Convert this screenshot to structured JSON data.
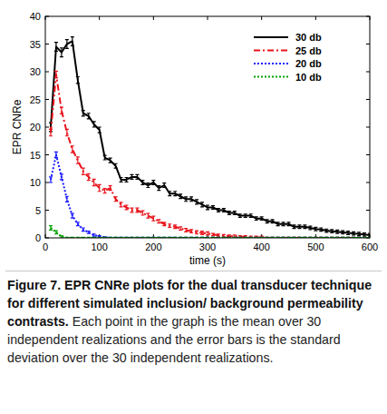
{
  "chart_data": {
    "type": "line",
    "x_label": "time (s)",
    "y_label": "EPR CNRe",
    "annotations": [
      "Figure 7. EPR CNRe plots for the dual transducer technique for different simulated inclusion/ background permeability contrasts.",
      "Each point in the graph is the mean over 30 independent realizations and the error bars is the standard deviation over the 30 independent realizations."
    ],
    "xlim": [
      0,
      600
    ],
    "ylim": [
      0,
      40
    ],
    "xticks": [
      0,
      100,
      200,
      300,
      400,
      500,
      600
    ],
    "yticks": [
      0,
      5,
      10,
      15,
      20,
      25,
      30,
      35,
      40
    ],
    "grid": false,
    "legend": "upper-right",
    "x": [
      10,
      20,
      30,
      40,
      50,
      60,
      70,
      80,
      90,
      100,
      110,
      120,
      130,
      140,
      150,
      160,
      170,
      180,
      190,
      200,
      210,
      220,
      230,
      240,
      250,
      260,
      270,
      280,
      290,
      300,
      310,
      320,
      330,
      340,
      350,
      360,
      370,
      380,
      390,
      400,
      410,
      420,
      430,
      440,
      450,
      460,
      470,
      480,
      490,
      500,
      510,
      520,
      530,
      540,
      550,
      560,
      570,
      580,
      590,
      600
    ],
    "series": [
      {
        "name": "30 db",
        "color": "#000000",
        "line_style": "solid",
        "values": [
          20,
          34.5,
          33.5,
          35,
          35.5,
          28.5,
          22.5,
          22,
          20.5,
          19.5,
          14.5,
          14,
          13,
          10.5,
          10.5,
          11,
          11,
          10,
          9.5,
          10,
          9,
          9.5,
          8,
          8,
          7.5,
          7,
          7,
          6.5,
          6,
          5.5,
          5.5,
          5,
          5,
          4.5,
          4.5,
          4,
          4,
          4,
          3.5,
          3.5,
          3,
          3,
          2.5,
          2.5,
          2.5,
          2,
          2,
          2,
          1.8,
          1.6,
          1.5,
          1.3,
          1.2,
          1.1,
          1,
          0.9,
          0.8,
          0.7,
          0.6,
          0.5
        ],
        "errors": [
          0.8,
          0.8,
          0.8,
          0.8,
          0.8,
          0.6,
          0.5,
          0.5,
          0.5,
          0.5,
          0.4,
          0.4,
          0.4,
          0.4,
          0.4,
          0.4,
          0.4,
          0.4,
          0.4,
          0.4,
          0.4,
          0.4,
          0.4,
          0.4,
          0.4,
          0.4,
          0.4,
          0.4,
          0.4,
          0.4,
          0.3,
          0.3,
          0.3,
          0.3,
          0.3,
          0.3,
          0.3,
          0.3,
          0.3,
          0.3,
          0.3,
          0.3,
          0.3,
          0.3,
          0.3,
          0.3,
          0.3,
          0.3,
          0.3,
          0.3,
          0.3,
          0.3,
          0.3,
          0.3,
          0.3,
          0.3,
          0.3,
          0.3,
          0.3,
          0.3
        ]
      },
      {
        "name": "25 db",
        "color": "#e8141c",
        "line_style": "dash-dot",
        "values": [
          19,
          29.5,
          23,
          19,
          16,
          14,
          12,
          11,
          10,
          9,
          8.5,
          9,
          7,
          6,
          5.5,
          5,
          5,
          4.5,
          4,
          3.5,
          3,
          2.5,
          2.2,
          2,
          1.7,
          1.4,
          1.2,
          1,
          0.9,
          0.8,
          0.6,
          0.5,
          0.4,
          0.3,
          0.3,
          0.2,
          0.2,
          0.1,
          0.1,
          0.1,
          0,
          0,
          0,
          0,
          0,
          0,
          0,
          0,
          0,
          0,
          0,
          0,
          0,
          0,
          0,
          0,
          0,
          0,
          0,
          0
        ],
        "errors": [
          0.6,
          0.6,
          0.6,
          0.6,
          0.6,
          0.6,
          0.6,
          0.6,
          0.6,
          0.6,
          0.4,
          0.4,
          0.4,
          0.4,
          0.4,
          0.4,
          0.4,
          0.4,
          0.4,
          0.4,
          0.3,
          0.3,
          0.3,
          0.3,
          0.3,
          0.3,
          0.3,
          0.3,
          0.3,
          0.3,
          0.2,
          0.2,
          0.2,
          0.2,
          0.2,
          0.2,
          0.2,
          0.2,
          0.2,
          0.2,
          0.1,
          0.1,
          0.1,
          0.1,
          0.1,
          0.1,
          0.1,
          0.1,
          0.1,
          0.1,
          0.1,
          0.1,
          0.1,
          0.1,
          0.1,
          0.1,
          0.1,
          0.1,
          0.1,
          0.1
        ]
      },
      {
        "name": "20 db",
        "color": "#1a1aff",
        "line_style": "dotted",
        "values": [
          10.5,
          15,
          11,
          7,
          4,
          2.5,
          1.5,
          1,
          0.5,
          0.3,
          0.1,
          0,
          0,
          0,
          0,
          0,
          0,
          0,
          0,
          0,
          0,
          0,
          0,
          0,
          0,
          0,
          0,
          0,
          0,
          0,
          0,
          0,
          0,
          0,
          0,
          0,
          0,
          0,
          0,
          0,
          0,
          0,
          0,
          0,
          0,
          0,
          0,
          0,
          0,
          0,
          0,
          0,
          0,
          0,
          0,
          0,
          0,
          0,
          0,
          0
        ],
        "errors": [
          0.5,
          0.5,
          0.5,
          0.5,
          0.4,
          0.3,
          0.3,
          0.2,
          0.2,
          0.1,
          0.1,
          0.1,
          0.1,
          0.1,
          0.1,
          0.1,
          0.1,
          0.1,
          0.1,
          0.1,
          0.1,
          0.1,
          0.1,
          0.1,
          0.1,
          0.1,
          0.1,
          0.1,
          0.1,
          0.1,
          0.1,
          0.1,
          0.1,
          0.1,
          0.1,
          0.1,
          0.1,
          0.1,
          0.1,
          0.1,
          0.1,
          0.1,
          0.1,
          0.1,
          0.1,
          0.1,
          0.1,
          0.1,
          0.1,
          0.1,
          0.1,
          0.1,
          0.1,
          0.1,
          0.1,
          0.1,
          0.1,
          0.1,
          0.1,
          0.1
        ]
      },
      {
        "name": "10 db",
        "color": "#00a000",
        "line_style": "dotted",
        "values": [
          1.8,
          1,
          0.2,
          0,
          0,
          0,
          0,
          0,
          0,
          0,
          0,
          0,
          0,
          0,
          0,
          0,
          0,
          0,
          0,
          0,
          0,
          0,
          0,
          0,
          0,
          0,
          0,
          0,
          0,
          0,
          0,
          0,
          0,
          0,
          0,
          0,
          0,
          0,
          0,
          0,
          0,
          0,
          0,
          0,
          0,
          0,
          0,
          0,
          0,
          0,
          0,
          0,
          0,
          0,
          0,
          0,
          0,
          0,
          0,
          0
        ],
        "errors": [
          0.4,
          0.3,
          0.2,
          0.1,
          0.1,
          0.1,
          0.1,
          0.1,
          0.1,
          0.1,
          0.1,
          0.1,
          0.1,
          0.1,
          0.1,
          0.1,
          0.1,
          0.1,
          0.1,
          0.1,
          0.1,
          0.1,
          0.1,
          0.1,
          0.1,
          0.1,
          0.1,
          0.1,
          0.1,
          0.1,
          0.1,
          0.1,
          0.1,
          0.1,
          0.1,
          0.1,
          0.1,
          0.1,
          0.1,
          0.1,
          0.1,
          0.1,
          0.1,
          0.1,
          0.1,
          0.1,
          0.1,
          0.1,
          0.1,
          0.1,
          0.1,
          0.1,
          0.1,
          0.1,
          0.1,
          0.1,
          0.1,
          0.1,
          0.1,
          0.1
        ]
      }
    ]
  }
}
